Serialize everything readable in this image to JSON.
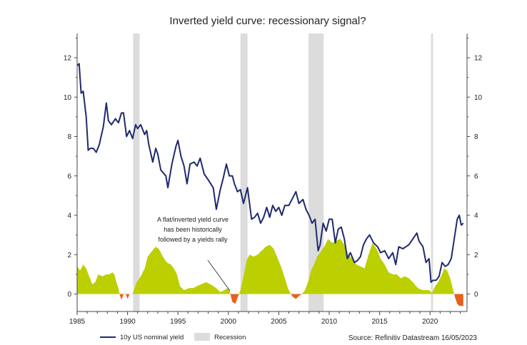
{
  "chart_data": {
    "type": "line",
    "title": "Inverted yield curve: recessionary signal?",
    "xlabel": "",
    "ylabel": "",
    "xlim": [
      1985,
      2023.4
    ],
    "ylim": [
      -0.9,
      13
    ],
    "x_ticks": [
      "1985",
      "1990",
      "1995",
      "2000",
      "2005",
      "2010",
      "2015",
      "2020"
    ],
    "y_ticks": [
      "0",
      "2",
      "4",
      "6",
      "8",
      "10",
      "12"
    ],
    "grid": false,
    "legend_position": "bottom-left",
    "colors": {
      "yield_line": "#1f2a6e",
      "spread_positive": "#bccf00",
      "spread_negative": "#e8601c",
      "recession": "#dcdcdc"
    },
    "series": [
      {
        "name": "10y US nominal yield",
        "kind": "line",
        "x": [
          1985.0,
          1985.2,
          1985.4,
          1985.6,
          1985.9,
          1986.1,
          1986.3,
          1986.6,
          1986.9,
          1987.2,
          1987.6,
          1987.9,
          1988.1,
          1988.4,
          1988.8,
          1989.1,
          1989.4,
          1989.6,
          1989.9,
          1990.2,
          1990.5,
          1990.8,
          1991.0,
          1991.3,
          1991.7,
          1991.9,
          1992.1,
          1992.5,
          1992.8,
          1993.0,
          1993.3,
          1993.8,
          1994.0,
          1994.4,
          1994.8,
          1995.0,
          1995.3,
          1995.6,
          1995.9,
          1996.2,
          1996.6,
          1996.9,
          1997.2,
          1997.6,
          1998.0,
          1998.5,
          1998.8,
          1999.2,
          1999.5,
          1999.8,
          2000.1,
          2000.4,
          2000.6,
          2000.9,
          2001.2,
          2001.5,
          2001.7,
          2001.9,
          2002.3,
          2002.6,
          2002.9,
          2003.2,
          2003.5,
          2003.8,
          2004.1,
          2004.4,
          2004.7,
          2005.0,
          2005.3,
          2005.6,
          2006.0,
          2006.4,
          2006.7,
          2007.0,
          2007.4,
          2007.7,
          2008.0,
          2008.3,
          2008.6,
          2008.9,
          2009.1,
          2009.4,
          2009.7,
          2010.0,
          2010.3,
          2010.6,
          2010.9,
          2011.2,
          2011.5,
          2011.8,
          2012.1,
          2012.5,
          2012.8,
          2013.1,
          2013.4,
          2013.7,
          2014.0,
          2014.4,
          2014.8,
          2015.1,
          2015.5,
          2015.9,
          2016.3,
          2016.6,
          2016.9,
          2017.3,
          2017.6,
          2017.9,
          2018.3,
          2018.7,
          2018.9,
          2019.3,
          2019.6,
          2019.9,
          2020.1,
          2020.3,
          2020.6,
          2020.9,
          2021.2,
          2021.5,
          2021.8,
          2022.1,
          2022.4,
          2022.7,
          2022.9,
          2023.1,
          2023.3
        ],
        "y": [
          11.6,
          11.7,
          10.2,
          10.3,
          9.0,
          7.3,
          7.4,
          7.4,
          7.2,
          7.6,
          8.5,
          9.7,
          8.8,
          8.6,
          8.9,
          8.7,
          9.2,
          9.2,
          8.0,
          8.3,
          7.9,
          8.6,
          8.4,
          8.6,
          8.1,
          8.3,
          7.6,
          6.7,
          7.4,
          7.1,
          6.3,
          6.0,
          5.4,
          6.6,
          7.5,
          7.8,
          7.0,
          6.5,
          5.6,
          6.6,
          6.7,
          6.5,
          6.9,
          6.1,
          5.8,
          5.4,
          4.3,
          5.3,
          5.9,
          6.6,
          6.0,
          6.0,
          5.6,
          5.2,
          5.3,
          4.6,
          5.0,
          5.4,
          3.8,
          3.9,
          4.1,
          3.6,
          3.9,
          4.4,
          3.9,
          4.5,
          4.2,
          4.4,
          4.0,
          4.5,
          4.5,
          4.9,
          5.2,
          4.6,
          4.8,
          4.3,
          4.0,
          3.6,
          3.8,
          2.2,
          2.5,
          3.6,
          3.2,
          3.8,
          3.8,
          2.6,
          3.3,
          3.4,
          2.8,
          1.8,
          2.1,
          1.6,
          1.7,
          1.9,
          2.5,
          2.8,
          3.0,
          2.6,
          2.4,
          2.1,
          2.2,
          1.8,
          2.1,
          1.5,
          2.4,
          2.3,
          2.4,
          2.5,
          2.8,
          3.1,
          2.7,
          2.4,
          1.6,
          1.8,
          0.6,
          0.7,
          0.7,
          0.9,
          1.6,
          1.4,
          1.5,
          1.8,
          2.8,
          3.8,
          4.0,
          3.5,
          3.6
        ]
      },
      {
        "name": "",
        "kind": "area",
        "x": [
          1985.0,
          1985.3,
          1985.6,
          1985.9,
          1986.2,
          1986.5,
          1986.8,
          1987.1,
          1987.5,
          1987.9,
          1988.2,
          1988.5,
          1988.7,
          1988.9,
          1989.1,
          1989.2,
          1989.4,
          1989.6,
          1989.8,
          1990.0,
          1990.2,
          1990.5,
          1990.9,
          1991.3,
          1991.7,
          1992.0,
          1992.3,
          1992.6,
          1992.8,
          1993.1,
          1993.5,
          1993.9,
          1994.3,
          1994.6,
          1994.9,
          1995.2,
          1995.6,
          1996.1,
          1996.5,
          1996.9,
          1997.3,
          1997.8,
          1998.2,
          1998.5,
          1998.8,
          1999.2,
          1999.6,
          1999.9,
          2000.1,
          2000.4,
          2000.7,
          2000.9,
          2001.2,
          2001.5,
          2001.8,
          2002.1,
          2002.5,
          2002.9,
          2003.3,
          2003.7,
          2004.1,
          2004.5,
          2004.9,
          2005.3,
          2005.6,
          2005.9,
          2006.2,
          2006.4,
          2006.7,
          2007.0,
          2007.3,
          2007.6,
          2007.9,
          2008.2,
          2008.5,
          2008.8,
          2009.1,
          2009.5,
          2009.9,
          2010.3,
          2010.7,
          2011.1,
          2011.5,
          2011.9,
          2012.3,
          2012.7,
          2013.1,
          2013.5,
          2013.9,
          2014.3,
          2014.7,
          2015.1,
          2015.5,
          2015.9,
          2016.3,
          2016.7,
          2017.1,
          2017.5,
          2017.9,
          2018.3,
          2018.7,
          2019.0,
          2019.3,
          2019.6,
          2019.9,
          2020.2,
          2020.5,
          2020.8,
          2021.1,
          2021.4,
          2021.7,
          2022.0,
          2022.3,
          2022.5,
          2022.7,
          2022.9,
          2023.1,
          2023.3
        ],
        "y": [
          1.4,
          1.2,
          1.5,
          1.3,
          0.9,
          0.5,
          0.6,
          1.0,
          0.9,
          1.0,
          1.0,
          1.1,
          1.0,
          0.6,
          0.3,
          0.0,
          -0.3,
          0.0,
          0.05,
          -0.25,
          0.0,
          0.0,
          0.6,
          0.9,
          1.3,
          1.9,
          2.1,
          2.3,
          2.4,
          2.3,
          1.9,
          1.6,
          1.5,
          1.3,
          1.0,
          0.4,
          0.2,
          0.3,
          0.3,
          0.4,
          0.5,
          0.6,
          0.5,
          0.4,
          0.3,
          0.1,
          0.2,
          0.3,
          0.2,
          -0.4,
          -0.5,
          -0.2,
          0.2,
          0.9,
          1.7,
          2.0,
          1.9,
          2.0,
          2.2,
          2.4,
          2.5,
          2.3,
          1.8,
          1.3,
          0.8,
          0.3,
          0.0,
          -0.15,
          -0.25,
          -0.1,
          0.0,
          0.2,
          0.6,
          1.2,
          1.5,
          1.9,
          2.1,
          2.4,
          2.8,
          2.6,
          2.7,
          2.8,
          2.5,
          2.0,
          1.8,
          1.5,
          1.4,
          1.3,
          2.0,
          2.6,
          2.3,
          1.8,
          1.5,
          1.1,
          1.0,
          1.0,
          0.8,
          0.9,
          0.8,
          0.6,
          0.35,
          0.25,
          0.2,
          0.2,
          0.2,
          0.05,
          0.4,
          0.6,
          0.9,
          1.3,
          1.2,
          0.8,
          0.2,
          -0.2,
          -0.5,
          -0.6,
          -0.6,
          -0.6
        ]
      }
    ],
    "recession_bands": [
      [
        1990.55,
        1991.2
      ],
      [
        2001.2,
        2001.9
      ],
      [
        2007.95,
        2009.45
      ],
      [
        2020.1,
        2020.3
      ]
    ],
    "annotations": [
      "A flat/inverted yield curve",
      "has been historically",
      "followed by a yields rally"
    ],
    "legend": [
      "10y US nominal yield",
      "Recession"
    ],
    "source": "Source: Refinitiv Datastream 16/05/2023"
  }
}
